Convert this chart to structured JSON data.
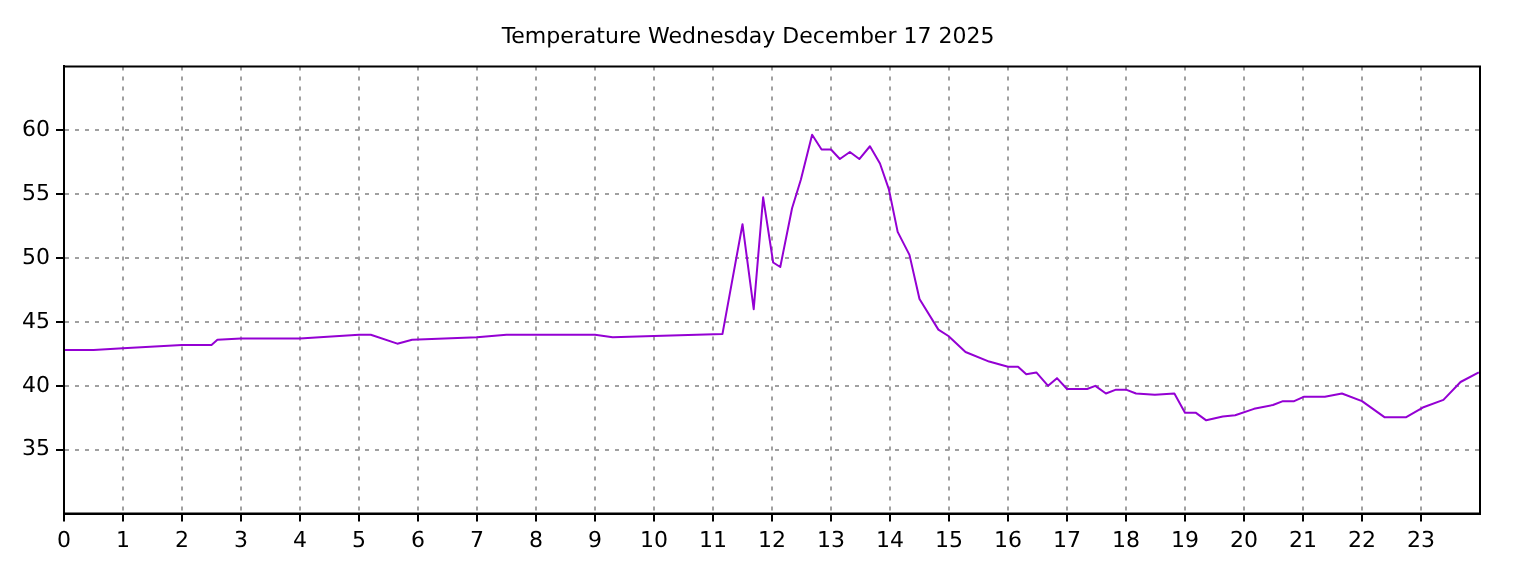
{
  "chart_data": {
    "type": "line",
    "title": "Temperature Wednesday December 17 2025",
    "x": [
      0,
      0.5,
      1,
      2,
      2.5,
      2.6,
      3,
      4,
      5,
      5.2,
      5.65,
      5.9,
      7,
      7.5,
      9,
      9.3,
      10,
      11.16,
      11.5,
      11.69,
      11.85,
      12.02,
      12.14,
      12.34,
      12.49,
      12.68,
      12.84,
      13,
      13.15,
      13.32,
      13.48,
      13.66,
      13.83,
      13.98,
      14.13,
      14.33,
      14.5,
      14.82,
      14.99,
      15.28,
      15.68,
      16,
      16.17,
      16.31,
      16.48,
      16.68,
      16.83,
      17,
      17.34,
      17.48,
      17.66,
      17.83,
      18,
      18.17,
      18.49,
      18.82,
      19,
      19.18,
      19.36,
      19.64,
      19.85,
      20.17,
      20.49,
      20.66,
      20.85,
      21.02,
      21.37,
      21.66,
      22,
      22.38,
      22.75,
      23.03,
      23.38,
      23.67,
      23.98
    ],
    "series": [
      {
        "color": "#9400d3",
        "values": [
          42.8,
          42.8,
          42.95,
          43.2,
          43.2,
          43.6,
          43.7,
          43.7,
          44,
          44,
          43.3,
          43.6,
          43.8,
          44,
          44,
          43.8,
          43.9,
          44.05,
          52.65,
          46,
          54.75,
          49.65,
          49.3,
          53.9,
          56.15,
          59.65,
          58.5,
          58.5,
          57.75,
          58.3,
          57.75,
          58.75,
          57.4,
          55.4,
          52.05,
          50.25,
          46.8,
          44.4,
          43.9,
          42.65,
          41.9,
          41.5,
          41.5,
          40.9,
          41.05,
          40,
          40.6,
          39.75,
          39.75,
          40,
          39.4,
          39.7,
          39.7,
          39.4,
          39.3,
          39.4,
          37.9,
          37.9,
          37.3,
          37.6,
          37.7,
          38.2,
          38.5,
          38.8,
          38.8,
          39.15,
          39.15,
          39.4,
          38.8,
          37.55,
          37.55,
          38.3,
          38.9,
          40.3,
          41.05
        ]
      }
    ],
    "xlim": [
      0,
      24
    ],
    "xticks": [
      0,
      1,
      2,
      3,
      4,
      5,
      6,
      7,
      8,
      9,
      10,
      11,
      12,
      13,
      14,
      15,
      16,
      17,
      18,
      19,
      20,
      21,
      22,
      23
    ],
    "ylim": [
      30,
      65
    ],
    "yticks": [
      35,
      40,
      45,
      50,
      55,
      60
    ],
    "grid": true,
    "legend": false,
    "marker": "none",
    "line_style": "solid"
  }
}
